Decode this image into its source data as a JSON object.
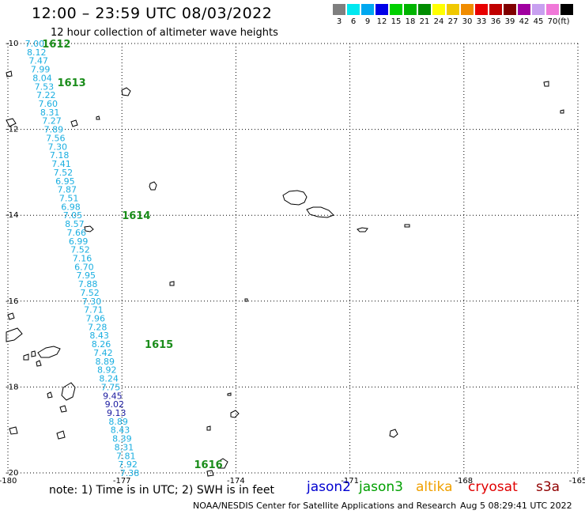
{
  "header": {
    "title": "12:00 – 23:59 UTC 08/03/2022",
    "subtitle": "12 hour collection of altimeter wave heights"
  },
  "legend": {
    "unit": "(ft)",
    "bins": [
      {
        "color": "#7f7f7f",
        "label": "3"
      },
      {
        "color": "#00e8f0",
        "label": "6"
      },
      {
        "color": "#00a8f0",
        "label": "9"
      },
      {
        "color": "#0000e8",
        "label": "12"
      },
      {
        "color": "#00d000",
        "label": "15"
      },
      {
        "color": "#00b400",
        "label": "18"
      },
      {
        "color": "#008c00",
        "label": "21"
      },
      {
        "color": "#ffff00",
        "label": "24"
      },
      {
        "color": "#f0c800",
        "label": "27"
      },
      {
        "color": "#f08c00",
        "label": "30"
      },
      {
        "color": "#e80000",
        "label": "33"
      },
      {
        "color": "#c00000",
        "label": "36"
      },
      {
        "color": "#800000",
        "label": "39"
      },
      {
        "color": "#a000a0",
        "label": "42"
      },
      {
        "color": "#c8a0f0",
        "label": "45"
      },
      {
        "color": "#f078d8",
        "label": "70"
      },
      {
        "color": "#000000",
        "label": ""
      }
    ]
  },
  "map": {
    "lon_ticks": [
      "-180",
      "-177",
      "-174",
      "-171",
      "-168",
      "-165"
    ],
    "lat_ticks": [
      "-10",
      "-12",
      "-14",
      "-16",
      "-18",
      "-20"
    ],
    "track": {
      "color_light": "#1aaee0",
      "color_dark": "#1a1aa0",
      "time_color": "#1a8c1a",
      "readings": [
        {
          "value": "7.00",
          "tone": "light",
          "lat": -10.0,
          "lon": -179.55
        },
        {
          "value": "8.12",
          "tone": "light",
          "lat": -10.2,
          "lon": -179.5
        },
        {
          "value": "7.47",
          "tone": "light",
          "lat": -10.4,
          "lon": -179.45
        },
        {
          "value": "7.99",
          "tone": "light",
          "lat": -10.6,
          "lon": -179.4
        },
        {
          "value": "8.04",
          "tone": "light",
          "lat": -10.8,
          "lon": -179.35
        },
        {
          "value": "7.53",
          "tone": "light",
          "lat": -11.0,
          "lon": -179.3
        },
        {
          "value": "7.22",
          "tone": "light",
          "lat": -11.2,
          "lon": -179.25
        },
        {
          "value": "7.60",
          "tone": "light",
          "lat": -11.4,
          "lon": -179.2
        },
        {
          "value": "8.31",
          "tone": "light",
          "lat": -11.6,
          "lon": -179.15
        },
        {
          "value": "7.27",
          "tone": "light",
          "lat": -11.8,
          "lon": -179.1
        },
        {
          "value": "7.89",
          "tone": "light",
          "lat": -12.0,
          "lon": -179.05
        },
        {
          "value": "7.56",
          "tone": "light",
          "lat": -12.2,
          "lon": -179.0
        },
        {
          "value": "7.30",
          "tone": "light",
          "lat": -12.4,
          "lon": -178.95
        },
        {
          "value": "7.18",
          "tone": "light",
          "lat": -12.6,
          "lon": -178.9
        },
        {
          "value": "7.41",
          "tone": "light",
          "lat": -12.8,
          "lon": -178.85
        },
        {
          "value": "7.52",
          "tone": "light",
          "lat": -13.0,
          "lon": -178.8
        },
        {
          "value": "6.95",
          "tone": "light",
          "lat": -13.2,
          "lon": -178.75
        },
        {
          "value": "7.87",
          "tone": "light",
          "lat": -13.4,
          "lon": -178.7
        },
        {
          "value": "7.51",
          "tone": "light",
          "lat": -13.6,
          "lon": -178.65
        },
        {
          "value": "6.98",
          "tone": "light",
          "lat": -13.8,
          "lon": -178.6
        },
        {
          "value": "7.05",
          "tone": "light",
          "lat": -14.0,
          "lon": -178.55
        },
        {
          "value": "8.57",
          "tone": "light",
          "lat": -14.2,
          "lon": -178.5
        },
        {
          "value": "7.66",
          "tone": "light",
          "lat": -14.4,
          "lon": -178.45
        },
        {
          "value": "6.99",
          "tone": "light",
          "lat": -14.6,
          "lon": -178.4
        },
        {
          "value": "7.52",
          "tone": "light",
          "lat": -14.8,
          "lon": -178.35
        },
        {
          "value": "7.16",
          "tone": "light",
          "lat": -15.0,
          "lon": -178.3
        },
        {
          "value": "6.70",
          "tone": "light",
          "lat": -15.2,
          "lon": -178.25
        },
        {
          "value": "7.95",
          "tone": "light",
          "lat": -15.4,
          "lon": -178.2
        },
        {
          "value": "7.88",
          "tone": "light",
          "lat": -15.6,
          "lon": -178.15
        },
        {
          "value": "7.52",
          "tone": "light",
          "lat": -15.8,
          "lon": -178.1
        },
        {
          "value": "7.30",
          "tone": "light",
          "lat": -16.0,
          "lon": -178.05
        },
        {
          "value": "7.71",
          "tone": "light",
          "lat": -16.2,
          "lon": -178.0
        },
        {
          "value": "7.96",
          "tone": "light",
          "lat": -16.4,
          "lon": -177.95
        },
        {
          "value": "7.28",
          "tone": "light",
          "lat": -16.6,
          "lon": -177.9
        },
        {
          "value": "8.43",
          "tone": "light",
          "lat": -16.8,
          "lon": -177.85
        },
        {
          "value": "8.26",
          "tone": "light",
          "lat": -17.0,
          "lon": -177.8
        },
        {
          "value": "7.42",
          "tone": "light",
          "lat": -17.2,
          "lon": -177.75
        },
        {
          "value": "8.89",
          "tone": "light",
          "lat": -17.4,
          "lon": -177.7
        },
        {
          "value": "8.92",
          "tone": "light",
          "lat": -17.6,
          "lon": -177.65
        },
        {
          "value": "8.24",
          "tone": "light",
          "lat": -17.8,
          "lon": -177.6
        },
        {
          "value": "7.75",
          "tone": "light",
          "lat": -18.0,
          "lon": -177.55
        },
        {
          "value": "9.45",
          "tone": "dark",
          "lat": -18.2,
          "lon": -177.5
        },
        {
          "value": "9.02",
          "tone": "dark",
          "lat": -18.4,
          "lon": -177.45
        },
        {
          "value": "9.13",
          "tone": "dark",
          "lat": -18.6,
          "lon": -177.4
        },
        {
          "value": "8.89",
          "tone": "light",
          "lat": -18.8,
          "lon": -177.35
        },
        {
          "value": "8.43",
          "tone": "light",
          "lat": -19.0,
          "lon": -177.3
        },
        {
          "value": "8.39",
          "tone": "light",
          "lat": -19.2,
          "lon": -177.25
        },
        {
          "value": "8.31",
          "tone": "light",
          "lat": -19.4,
          "lon": -177.2
        },
        {
          "value": "7.81",
          "tone": "light",
          "lat": -19.6,
          "lon": -177.15
        },
        {
          "value": "7.92",
          "tone": "light",
          "lat": -19.8,
          "lon": -177.1
        },
        {
          "value": "7.38",
          "tone": "light",
          "lat": -20.0,
          "lon": -177.05
        }
      ],
      "time_marks": [
        {
          "label": "1612",
          "lat": -10.0,
          "lon": -179.1
        },
        {
          "label": "1613",
          "lat": -10.9,
          "lon": -178.7
        },
        {
          "label": "1614",
          "lat": -14.0,
          "lon": -177.0
        },
        {
          "label": "1615",
          "lat": -17.0,
          "lon": -176.4
        },
        {
          "label": "1616",
          "lat": -19.8,
          "lon": -175.1
        }
      ]
    }
  },
  "footer": {
    "note": "note: 1) Time is in UTC; 2) SWH is in feet",
    "missions": [
      {
        "name": "jason2",
        "color": "#0000d0"
      },
      {
        "name": "jason3",
        "color": "#00a000"
      },
      {
        "name": "altika",
        "color": "#f0a000"
      },
      {
        "name": "cryosat",
        "color": "#e00000"
      },
      {
        "name": "s3a",
        "color": "#900000"
      }
    ],
    "credit": "NOAA/NESDIS Center for Satellite Applications and Research",
    "timestamp": "Aug  5 08:29:41 UTC 2022"
  }
}
